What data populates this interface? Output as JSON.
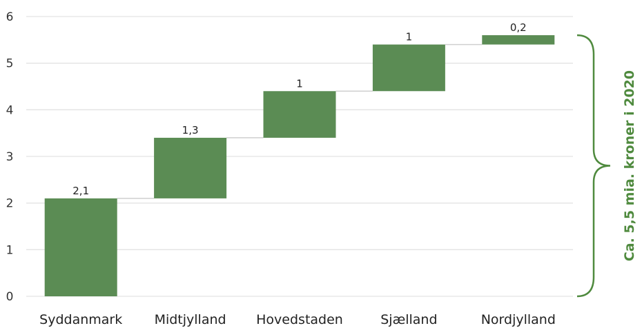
{
  "chart_data": {
    "type": "bar",
    "subtype": "waterfall",
    "categories": [
      "Syddanmark",
      "Midtjylland",
      "Hovedstaden",
      "Sjælland",
      "Nordjylland"
    ],
    "values": [
      2.1,
      1.3,
      1.0,
      1.0,
      0.2
    ],
    "data_labels": [
      "2,1",
      "1,3",
      "1",
      "1",
      "0,2"
    ],
    "y_ticks": [
      "0",
      "1",
      "2",
      "3",
      "4",
      "5",
      "6"
    ],
    "ylim": [
      0,
      6
    ],
    "grid": true,
    "title": "",
    "xlabel": "",
    "ylabel": "",
    "annotation": "Ca. 5,5 mia. kroner i 2020",
    "colors": {
      "bar": "#5b8c54",
      "annotation": "#4f8a3e",
      "grid": "#e3e3e3",
      "connector": "#cfcfcf"
    }
  }
}
